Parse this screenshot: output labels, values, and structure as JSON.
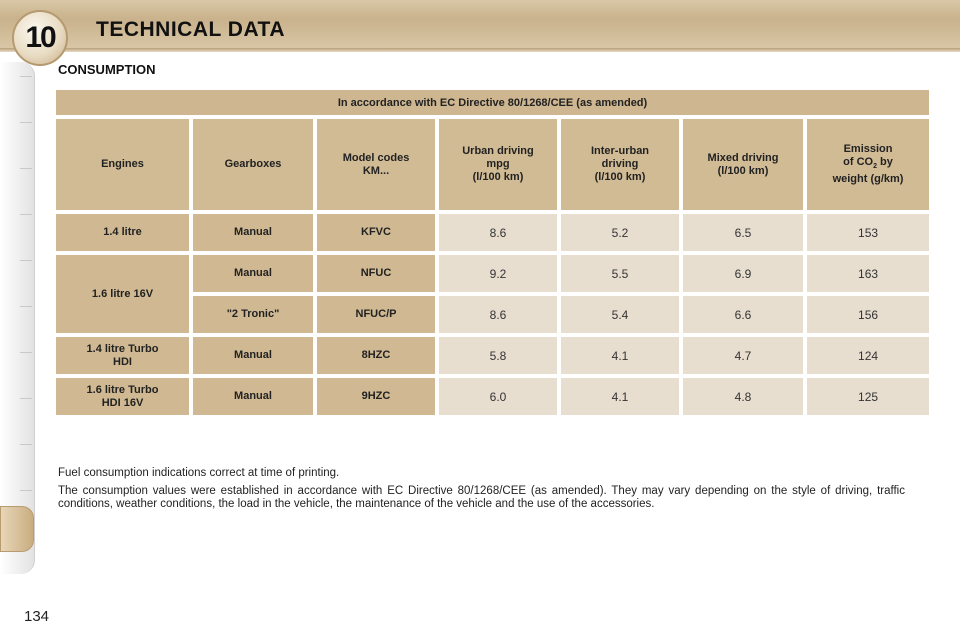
{
  "header": {
    "chapter_number": "10",
    "title": "TECHNICAL DATA"
  },
  "section_title": "CONSUMPTION",
  "table": {
    "directive": "In accordance with EC Directive 80/1268/CEE (as amended)",
    "headers": {
      "engines": "Engines",
      "gearboxes": "Gearboxes",
      "model_codes": "Model codes KM...",
      "urban": "Urban driving mpg (l/100 km)",
      "inter_urban": "Inter-urban driving (l/100 km)",
      "mixed": "Mixed driving (l/100 km)",
      "emission": "Emission of CO2 by weight (g/km)"
    },
    "rows": [
      {
        "engine": "1.4 litre",
        "gearbox": "Manual",
        "model": "KFVC",
        "urban": "8.6",
        "inter_urban": "5.2",
        "mixed": "6.5",
        "emission": "153"
      },
      {
        "engine": "1.6 litre 16V",
        "gearbox": "Manual",
        "model": "NFUC",
        "urban": "9.2",
        "inter_urban": "5.5",
        "mixed": "6.9",
        "emission": "163"
      },
      {
        "engine": "",
        "gearbox": "\"2 Tronic\"",
        "model": "NFUC/P",
        "urban": "8.6",
        "inter_urban": "5.4",
        "mixed": "6.6",
        "emission": "156"
      },
      {
        "engine": "1.4 litre Turbo HDI",
        "gearbox": "Manual",
        "model": "8HZC",
        "urban": "5.8",
        "inter_urban": "4.1",
        "mixed": "4.7",
        "emission": "124"
      },
      {
        "engine": "1.6 litre Turbo HDI 16V",
        "gearbox": "Manual",
        "model": "9HZC",
        "urban": "6.0",
        "inter_urban": "4.1",
        "mixed": "4.8",
        "emission": "125"
      }
    ]
  },
  "notes": {
    "note1": "Fuel consumption indications correct at time of printing.",
    "note2": "The consumption values were established in accordance with EC Directive 80/1268/CEE (as amended). They may vary depending on the style of driving, traffic conditions, weather conditions, the load in the vehicle, the maintenance of the vehicle and the use of the accessories."
  },
  "page_number": "134"
}
